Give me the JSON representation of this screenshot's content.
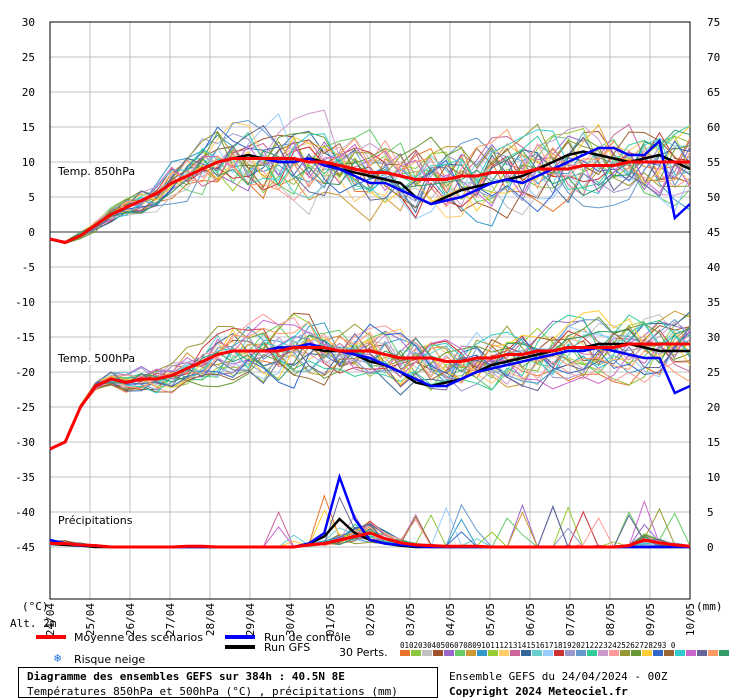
{
  "chart_data": {
    "type": "line",
    "x_dates": [
      "24/04",
      "25/04",
      "26/04",
      "27/04",
      "28/04",
      "29/04",
      "30/04",
      "01/05",
      "02/05",
      "03/05",
      "04/05",
      "05/05",
      "06/05",
      "07/05",
      "08/05",
      "09/05",
      "10/05"
    ],
    "y_left": {
      "label": "(°C)",
      "ticks": [
        30,
        25,
        20,
        15,
        10,
        5,
        0,
        -5,
        -10,
        -15,
        -20,
        -25,
        -30,
        -35,
        -40,
        -45
      ]
    },
    "y_right": {
      "label": "(mm)",
      "ticks": [
        75,
        70,
        65,
        60,
        55,
        50,
        45,
        40,
        35,
        30,
        25,
        20,
        15,
        10,
        5,
        0
      ]
    },
    "panel_labels": [
      "Temp. 850hPa",
      "Temp. 500hPa",
      "Précipitations"
    ],
    "alt_label": "Alt. 2m",
    "series": [
      {
        "name": "Moyenne des scénarios",
        "color": "#ff0000",
        "t850": [
          -1,
          -1.5,
          -0.5,
          1,
          2.5,
          3.5,
          4.5,
          5.5,
          7,
          8,
          9,
          10,
          10.5,
          10.5,
          10.5,
          10.5,
          10.5,
          10,
          10,
          9.5,
          9,
          8.5,
          8.5,
          8,
          7.5,
          7.5,
          7.5,
          8,
          8,
          8.5,
          8.5,
          8.5,
          9,
          9,
          9,
          9.5,
          9.5,
          9.5,
          10,
          10,
          10,
          10,
          10
        ],
        "t500": [
          -31,
          -30,
          -25,
          -22,
          -21,
          -21.5,
          -21,
          -21,
          -20.5,
          -19.5,
          -18.5,
          -17.5,
          -17,
          -17,
          -17,
          -17,
          -16.5,
          -16.5,
          -16.5,
          -17,
          -17,
          -17,
          -17.5,
          -18,
          -18,
          -18,
          -18.5,
          -18.5,
          -18,
          -18,
          -17.5,
          -17.5,
          -17,
          -17,
          -16.5,
          -16.5,
          -16.5,
          -16.5,
          -16,
          -16,
          -16,
          -16,
          -16
        ],
        "precip": [
          0.5,
          0.5,
          0.3,
          0.2,
          0,
          0,
          0,
          0,
          0,
          0.1,
          0.1,
          0,
          0,
          0,
          0,
          0,
          0,
          0.3,
          0.5,
          1,
          1.5,
          2,
          1.2,
          0.6,
          0.3,
          0.2,
          0.1,
          0.1,
          0.1,
          0,
          0,
          0,
          0,
          0,
          0,
          0,
          0,
          0,
          0.2,
          1,
          0.6,
          0.3,
          0.1
        ]
      },
      {
        "name": "Run de contrôle",
        "color": "#0000ff",
        "t850": [
          -1,
          -1.5,
          -0.5,
          1,
          2.5,
          3.5,
          4.5,
          5.5,
          7,
          8,
          9,
          10,
          10.5,
          10.5,
          10.5,
          10,
          10,
          10.5,
          9.5,
          9,
          8,
          7,
          7,
          6,
          5,
          4,
          4.5,
          5,
          6,
          7,
          7.5,
          7,
          8,
          9,
          10,
          11,
          12,
          12,
          11,
          11,
          13,
          2,
          4
        ],
        "t500": [
          -31,
          -30,
          -25,
          -22,
          -21,
          -21.5,
          -21,
          -21,
          -20.5,
          -19.5,
          -18.5,
          -17.5,
          -17,
          -17,
          -17,
          -16.5,
          -16.5,
          -16,
          -16.5,
          -17,
          -17.5,
          -18,
          -19,
          -20,
          -21,
          -22,
          -22,
          -21,
          -20,
          -19.5,
          -19,
          -18.5,
          -18,
          -17.5,
          -17,
          -17,
          -16.5,
          -17,
          -17.5,
          -18,
          -18,
          -23,
          -22
        ],
        "precip": [
          1,
          0.5,
          0.2,
          0.2,
          0,
          0,
          0,
          0,
          0,
          0,
          0,
          0,
          0,
          0,
          0,
          0,
          0,
          0.5,
          2,
          10,
          4,
          1,
          0.5,
          0.3,
          0.1,
          0,
          0,
          0,
          0,
          0,
          0,
          0,
          0,
          0,
          0,
          0,
          0,
          0,
          0,
          0,
          0,
          0,
          0
        ]
      },
      {
        "name": "Run GFS",
        "color": "#000000",
        "t850": [
          -1,
          -1.5,
          -0.5,
          1,
          2.5,
          3.5,
          4.5,
          5.5,
          7,
          8,
          9,
          10,
          10.5,
          11,
          10.5,
          10,
          10,
          10.5,
          10,
          9,
          8.5,
          8,
          7.5,
          7,
          5,
          4,
          5,
          6,
          6.5,
          7,
          7.5,
          8,
          9,
          10,
          11,
          11.5,
          11,
          10.5,
          10,
          10.5,
          11,
          10,
          9
        ],
        "t500": [
          -31,
          -30,
          -25,
          -22,
          -21,
          -21.5,
          -21,
          -21,
          -20.5,
          -19.5,
          -18.5,
          -17.5,
          -17,
          -17,
          -17,
          -16.5,
          -16.5,
          -16.5,
          -17,
          -17,
          -17.5,
          -18.5,
          -19,
          -20,
          -21.5,
          -22,
          -21.5,
          -21,
          -20,
          -19,
          -18.5,
          -18,
          -17.5,
          -17,
          -16.5,
          -16.5,
          -16,
          -16,
          -16,
          -16.5,
          -17,
          -17,
          -17
        ],
        "precip": [
          0.5,
          0.3,
          0.2,
          0,
          0,
          0,
          0,
          0,
          0,
          0,
          0,
          0,
          0,
          0,
          0,
          0,
          0,
          0.5,
          1.5,
          4,
          2,
          1,
          0.5,
          0.2,
          0,
          0,
          0,
          0,
          0,
          0,
          0,
          0,
          0,
          0,
          0,
          0,
          0,
          0,
          0,
          0,
          0,
          0,
          0
        ]
      }
    ],
    "legend": {
      "mean": "Moyenne des scénarios",
      "control": "Run de contrôle",
      "gfs": "Run GFS",
      "snow": "Risque neige",
      "perts_label": "30 Perts.",
      "perts_numbers": "01020304050607080910111213141516171819202122232425262728293 0"
    },
    "pert_colors": [
      "#e8742c",
      "#8cc63f",
      "#c0c0c0",
      "#a0522d",
      "#9966cc",
      "#66cc66",
      "#cc9933",
      "#3399cc",
      "#99cc33",
      "#ffcc66",
      "#cc6699",
      "#336699",
      "#66cccc",
      "#99ccff",
      "#cc3333",
      "#9999cc",
      "#6699cc",
      "#33cc99",
      "#cc99cc",
      "#ff9999",
      "#999933",
      "#669933",
      "#ffcc33",
      "#3366cc",
      "#996633",
      "#33cccc",
      "#cc66cc",
      "#666699",
      "#ff9966",
      "#339966"
    ]
  },
  "footer": {
    "title": "Diagramme des ensembles GEFS sur 384h : 40.5N 8E",
    "subtitle": "Températures 850hPa et 500hPa (°C) , précipitations (mm)",
    "run": "Ensemble GEFS du 24/04/2024 - 00Z",
    "copyright": "Copyright 2024 Meteociel.fr"
  },
  "colors": {
    "mean": "#ff0000",
    "control": "#0000ff",
    "gfs": "#000000",
    "grid": "#c0c0c0",
    "zero": "#999999"
  }
}
